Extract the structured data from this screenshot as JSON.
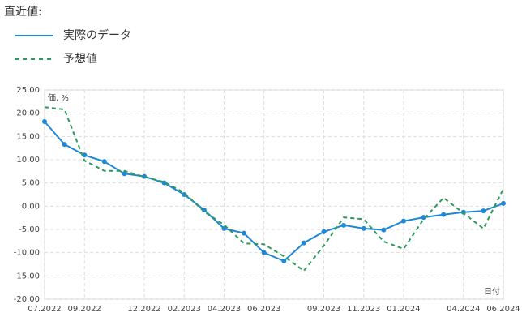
{
  "chart_data": {
    "type": "line",
    "title": "直近値:",
    "y_label": "価, %",
    "x_label": "日付",
    "categories": [
      "07.2022",
      null,
      "09.2022",
      null,
      null,
      "12.2022",
      null,
      "02.2023",
      null,
      "04.2023",
      null,
      "06.2023",
      null,
      null,
      "09.2023",
      null,
      "11.2023",
      null,
      "01.2024",
      null,
      null,
      "04.2024",
      null,
      "06.2024"
    ],
    "series": [
      {
        "name": "実際のデータ",
        "color": "#1f88d6",
        "dashed": false,
        "markers": true,
        "values": [
          18.2,
          13.3,
          11.0,
          9.6,
          7.0,
          6.4,
          5.0,
          2.5,
          -0.8,
          -4.8,
          -5.8,
          -10.0,
          -11.8,
          -7.9,
          -5.5,
          -4.1,
          -4.8,
          -5.1,
          -3.2,
          -2.4,
          -1.8,
          -1.3,
          -1.0,
          0.6
        ]
      },
      {
        "name": "予想値",
        "color": "#2e9a5a",
        "dashed": true,
        "markers": false,
        "values": [
          21.3,
          20.8,
          9.8,
          7.6,
          7.6,
          6.3,
          5.2,
          2.9,
          -1.2,
          -4.0,
          -8.0,
          -8.2,
          -10.8,
          -13.9,
          -8.5,
          -2.4,
          -2.8,
          -7.6,
          -9.2,
          -2.8,
          1.8,
          -1.5,
          -4.8,
          3.7
        ]
      }
    ],
    "ylim": [
      -20,
      25
    ],
    "yticks": [
      {
        "value": 25,
        "label": "25.00"
      },
      {
        "value": 20,
        "label": "20.00"
      },
      {
        "value": 15,
        "label": "15.00"
      },
      {
        "value": 10,
        "label": "10.00"
      },
      {
        "value": 5,
        "label": "5.00"
      },
      {
        "value": 0,
        "label": "0.00"
      },
      {
        "value": -5,
        "label": "-5.00"
      },
      {
        "value": -10,
        "label": "-10.00"
      },
      {
        "value": -15,
        "label": "-15.00"
      },
      {
        "value": -20,
        "label": "-20.00"
      }
    ],
    "grid": true
  }
}
